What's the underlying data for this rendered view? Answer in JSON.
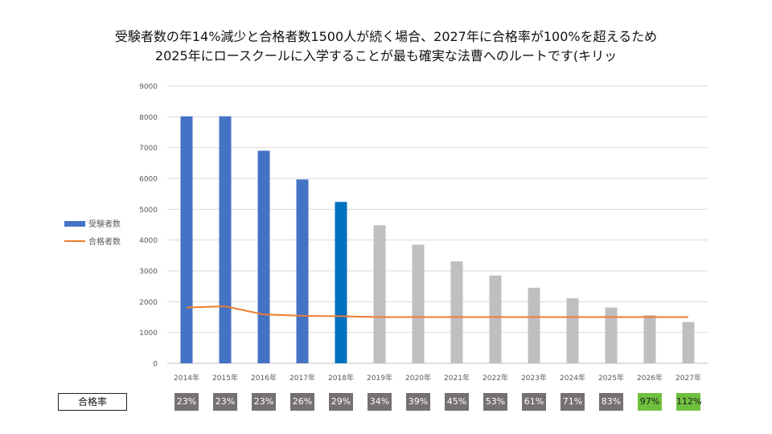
{
  "title_lines": [
    "受験者数の年14%減少と合格者数1500人が続く場合、2027年に合格率が100%を超えるため",
    "2025年にロースクールに入学することが最も確実な法曹へのルートです(キリッ"
  ],
  "chart_data": {
    "type": "bar",
    "title": "受験者数の年14%減少と合格者数1500人が続く場合、2027年に合格率が100%を超えるため 2025年にロースクールに入学することが最も確実な法曹へのルートです(キリッ",
    "categories": [
      "2014年",
      "2015年",
      "2016年",
      "2017年",
      "2018年",
      "2019年",
      "2020年",
      "2021年",
      "2022年",
      "2023年",
      "2024年",
      "2025年",
      "2026年",
      "2027年"
    ],
    "series": [
      {
        "name": "受験者数",
        "type": "bar",
        "values": [
          8015,
          8016,
          6899,
          5967,
          5238,
          4480,
          3850,
          3310,
          2850,
          2450,
          2110,
          1810,
          1560,
          1340
        ],
        "colors": [
          "#4472C4",
          "#4472C4",
          "#4472C4",
          "#4472C4",
          "#0070C0",
          "#BFBFBF",
          "#BFBFBF",
          "#BFBFBF",
          "#BFBFBF",
          "#BFBFBF",
          "#BFBFBF",
          "#BFBFBF",
          "#BFBFBF",
          "#BFBFBF"
        ]
      },
      {
        "name": "合格者数",
        "type": "line",
        "color": "#ED7D31",
        "values": [
          1810,
          1850,
          1583,
          1543,
          1525,
          1500,
          1500,
          1500,
          1500,
          1500,
          1500,
          1500,
          1500,
          1500
        ]
      }
    ],
    "ylim": [
      0,
      9000
    ],
    "yticks": [
      0,
      1000,
      2000,
      3000,
      4000,
      5000,
      6000,
      7000,
      8000,
      9000
    ],
    "grid": true,
    "legend": "left"
  },
  "pass_rate": {
    "label": "合格率",
    "values": [
      "23%",
      "23%",
      "23%",
      "26%",
      "29%",
      "34%",
      "39%",
      "45%",
      "53%",
      "61%",
      "71%",
      "83%",
      "97%",
      "112%"
    ],
    "colors": [
      "#767171",
      "#767171",
      "#767171",
      "#767171",
      "#767171",
      "#767171",
      "#767171",
      "#767171",
      "#767171",
      "#767171",
      "#767171",
      "#767171",
      "#70C040",
      "#70C040"
    ]
  }
}
